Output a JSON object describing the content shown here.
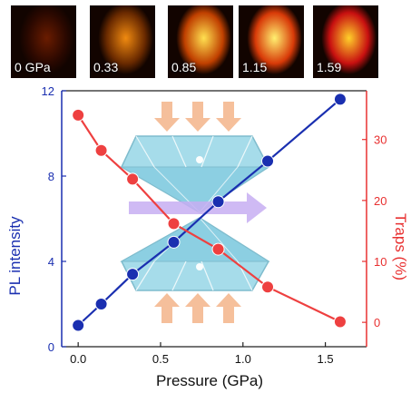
{
  "pl_images": [
    {
      "label": "0 GPa",
      "core": "#6a1c00",
      "edge": "#2a0800"
    },
    {
      "label": "0.33",
      "core": "#f08a10",
      "edge": "#6a2a00"
    },
    {
      "label": "0.85",
      "core": "#ffe050",
      "edge": "#c04000"
    },
    {
      "label": "1.15",
      "core": "#fff070",
      "edge": "#d83a08"
    },
    {
      "label": "1.59",
      "core": "#ffd02a",
      "edge": "#c81010"
    }
  ],
  "chart_data": {
    "type": "line",
    "xlabel": "Pressure (GPa)",
    "xlim": [
      -0.1,
      1.75
    ],
    "xticks": [
      "0.0",
      "0.5",
      "1.0",
      "1.5"
    ],
    "ylabel_left": "PL intensity",
    "ylim_left": [
      0,
      12
    ],
    "yticks_left": [
      "0",
      "4",
      "8",
      "12"
    ],
    "ylabel_right": "Traps (%)",
    "ylim_right": [
      -4,
      38
    ],
    "yticks_right": [
      "0",
      "10",
      "20",
      "30"
    ],
    "grid": false,
    "series": [
      {
        "axis": "left",
        "color": "#1a2fb0",
        "x": [
          0,
          0.14,
          0.33,
          0.58,
          0.85,
          1.15,
          1.59
        ],
        "values": [
          1.0,
          2.0,
          3.4,
          4.9,
          6.8,
          8.7,
          11.6
        ]
      },
      {
        "axis": "right",
        "color": "#ee4040",
        "x": [
          0,
          0.14,
          0.33,
          0.58,
          0.85,
          1.15,
          1.59
        ],
        "values": [
          34,
          28.2,
          23.5,
          16.2,
          12,
          5.8,
          0.1
        ]
      }
    ]
  },
  "colors": {
    "left_axis": "#1a2fb0",
    "right_axis": "#e83030",
    "arrow_orange": "#f4b58a",
    "arrow_purple": "#c7aef2",
    "diamond": "#a6dcea"
  }
}
